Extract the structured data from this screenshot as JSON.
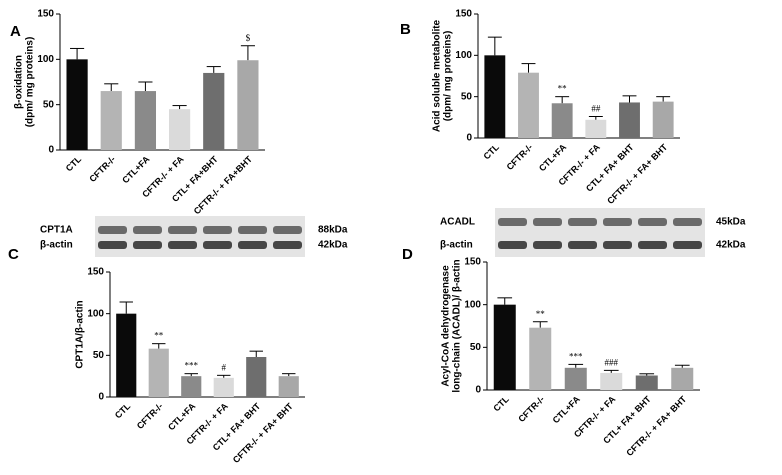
{
  "chart_data": [
    {
      "type": "bar",
      "panel": "A",
      "ylabel": [
        "β-oxidation",
        "(dpm/ mg proteins)"
      ],
      "categories": [
        "CTL",
        "CFTR-/-",
        "CTL+FA",
        "CFTR-/- + FA",
        "CTL+ FA+BHT",
        "CFTR-/- + FA+BHT"
      ],
      "values": [
        100,
        65,
        65,
        45,
        85,
        99
      ],
      "errors": [
        12,
        8,
        10,
        4,
        7,
        16
      ],
      "annotations": [
        null,
        null,
        null,
        null,
        null,
        "$"
      ],
      "colors": [
        "#0a0a0a",
        "#b4b4b4",
        "#8a8a8a",
        "#dadada",
        "#6e6e6e",
        "#a8a8a8"
      ],
      "ylim": [
        0,
        150
      ],
      "yticks": [
        0,
        50,
        100,
        150
      ]
    },
    {
      "type": "bar",
      "panel": "B",
      "ylabel": [
        "Acid soluble metabolite",
        "(dpm/ mg proteins)"
      ],
      "categories": [
        "CTL",
        "CFTR-/-",
        "CTL+FA",
        "CFTR-/- + FA",
        "CTL+ FA+ BHT",
        "CFTR-/- + FA+ BHT"
      ],
      "values": [
        100,
        79,
        42,
        22,
        43,
        44
      ],
      "errors": [
        22,
        11,
        8,
        4,
        8,
        6
      ],
      "annotations": [
        null,
        null,
        "**",
        "##",
        null,
        null
      ],
      "colors": [
        "#0a0a0a",
        "#b4b4b4",
        "#8a8a8a",
        "#dadada",
        "#6e6e6e",
        "#a8a8a8"
      ],
      "ylim": [
        0,
        150
      ],
      "yticks": [
        0,
        50,
        100,
        150
      ]
    },
    {
      "type": "bar",
      "panel": "C",
      "ylabel": [
        "CPT1A/β-actin"
      ],
      "blot": [
        {
          "label": "CPT1A",
          "size": "88kDa"
        },
        {
          "label": "β-actin",
          "size": "42kDa"
        }
      ],
      "categories": [
        "CTL",
        "CFTR-/-",
        "CTL+FA",
        "CFTR-/- + FA",
        "CTL+ FA+ BHT",
        "CFTR-/- + FA+ BHT"
      ],
      "values": [
        100,
        58,
        25,
        23,
        48,
        25
      ],
      "errors": [
        14,
        6,
        3,
        3,
        7,
        3
      ],
      "annotations": [
        null,
        "**",
        "***",
        "#",
        null,
        null
      ],
      "colors": [
        "#0a0a0a",
        "#b4b4b4",
        "#8a8a8a",
        "#dadada",
        "#6e6e6e",
        "#a8a8a8"
      ],
      "ylim": [
        0,
        150
      ],
      "yticks": [
        0,
        50,
        100,
        150
      ]
    },
    {
      "type": "bar",
      "panel": "D",
      "ylabel": [
        "Acyl-CoA dehydrogenase",
        "long-chain (ACADL)/ β-actin"
      ],
      "blot": [
        {
          "label": "ACADL",
          "size": "45kDa"
        },
        {
          "label": "β-actin",
          "size": "42kDa"
        }
      ],
      "categories": [
        "CTL",
        "CFTR-/-",
        "CTL+FA",
        "CFTR-/- + FA",
        "CTL+ FA+ BHT",
        "CFTR-/- + FA+ BHT"
      ],
      "values": [
        100,
        73,
        26,
        20,
        17,
        26
      ],
      "errors": [
        8,
        7,
        4,
        3,
        2,
        3
      ],
      "annotations": [
        null,
        "**",
        "***",
        "###",
        null,
        null
      ],
      "colors": [
        "#0a0a0a",
        "#b4b4b4",
        "#8a8a8a",
        "#dadada",
        "#6e6e6e",
        "#a8a8a8"
      ],
      "ylim": [
        0,
        150
      ],
      "yticks": [
        0,
        50,
        100,
        150
      ]
    }
  ]
}
